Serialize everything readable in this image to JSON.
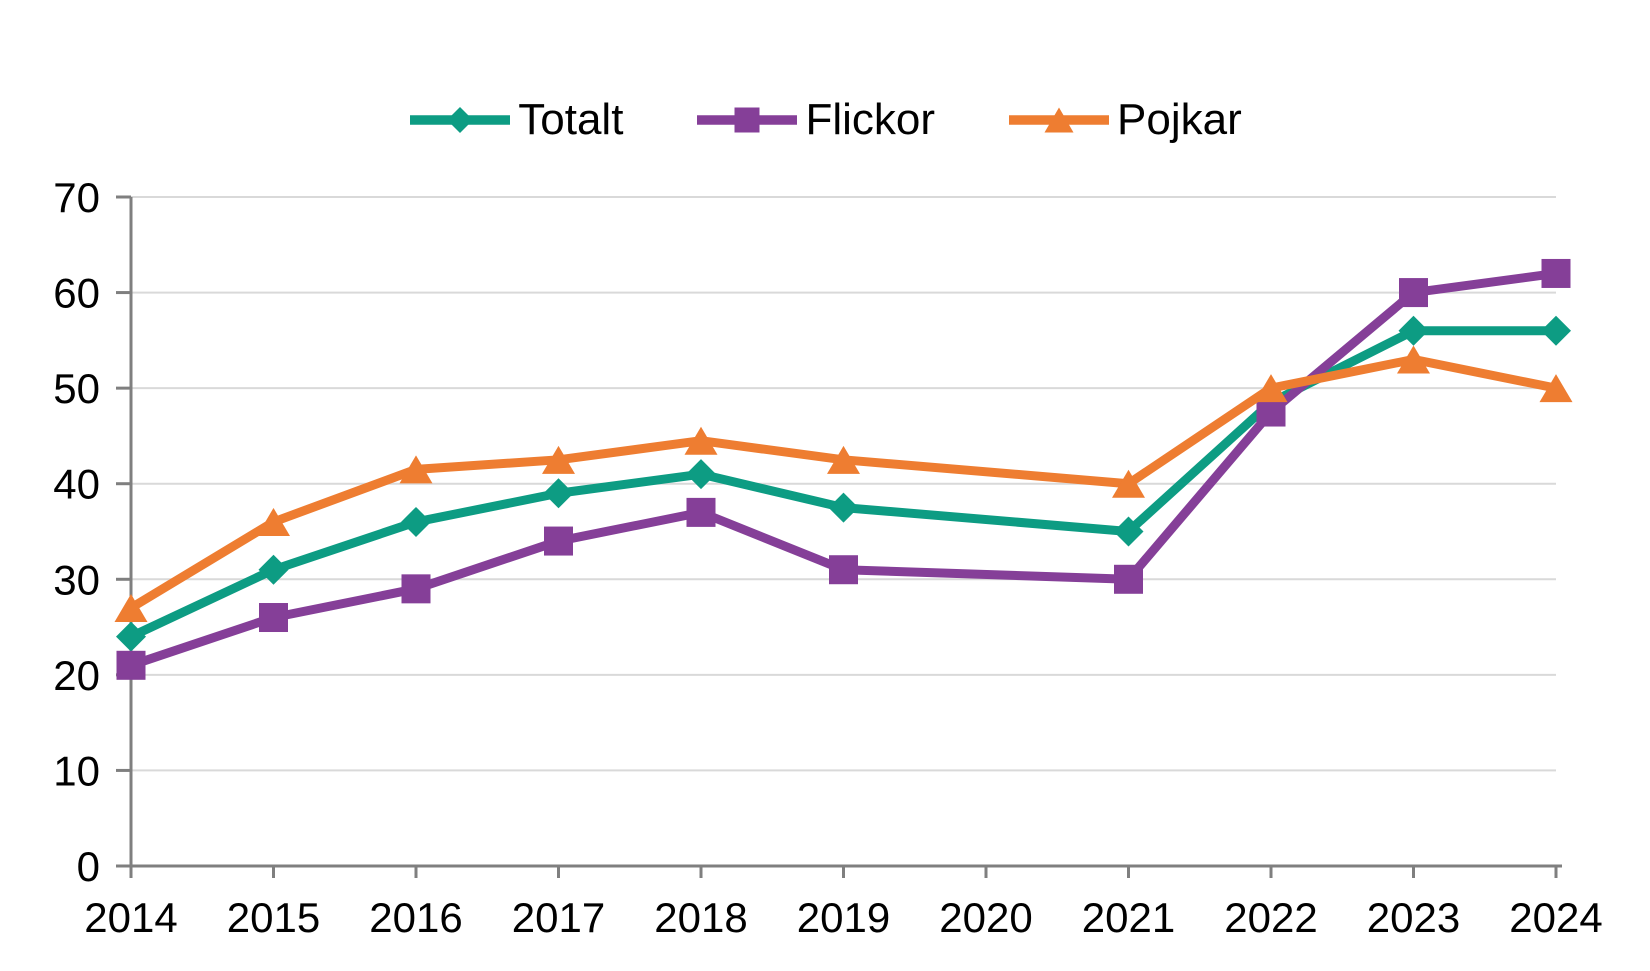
{
  "chart_data": {
    "type": "line",
    "title": "",
    "xlabel": "",
    "ylabel": "",
    "categories": [
      "2014",
      "2015",
      "2016",
      "2017",
      "2018",
      "2019",
      "2020",
      "2021",
      "2022",
      "2023",
      "2024"
    ],
    "series": [
      {
        "name": "Totalt",
        "marker": "diamond",
        "color": "#0D9C83",
        "values": [
          24,
          31,
          36,
          39,
          41,
          37.5,
          null,
          35,
          48.5,
          56,
          56
        ]
      },
      {
        "name": "Flickor",
        "marker": "square",
        "color": "#853F98",
        "values": [
          21,
          26,
          29,
          34,
          37,
          31,
          null,
          30,
          47.5,
          60,
          62
        ]
      },
      {
        "name": "Pojkar",
        "marker": "triangle",
        "color": "#EE7D31",
        "values": [
          27,
          36,
          41.5,
          42.5,
          44.5,
          42.5,
          null,
          40,
          50,
          53,
          50
        ]
      }
    ],
    "ylim": [
      0,
      70
    ],
    "yticks": [
      0,
      10,
      20,
      30,
      40,
      50,
      60,
      70
    ],
    "grid": true,
    "gridline_color": "#D9D9D9",
    "axis_color": "#7F7F7F",
    "text_color": "#000000",
    "legend_position": "top",
    "missing_points": [
      "2020"
    ]
  }
}
